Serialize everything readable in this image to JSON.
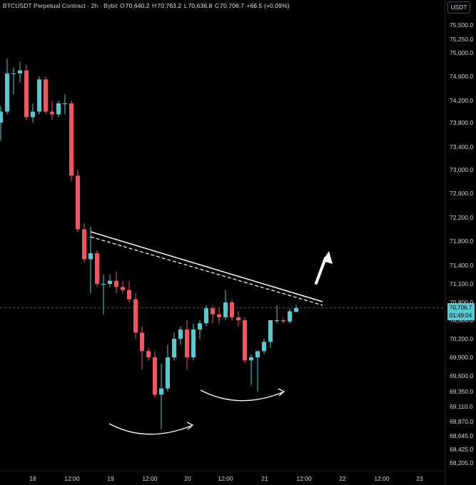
{
  "header": {
    "symbol": "BTCUSDT Perpetual Contract · 2h · Bybit",
    "o_label": "O",
    "o_value": "70,640.2",
    "h_label": "H",
    "h_value": "70,763.2",
    "l_label": "L",
    "l_value": "70,636.8",
    "c_label": "C",
    "c_value": "70,706.7",
    "change": "+66.5 (+0.09%)"
  },
  "currency_button": "USDT",
  "price_badge": {
    "price": "70,706.7",
    "countdown": "01:49:04"
  },
  "colors": {
    "up": "#5ac8d0",
    "down": "#f2555f",
    "background": "#000000",
    "text": "#d1d4dc"
  },
  "chart_data": {
    "type": "candlestick",
    "y_tick_labels": [
      "75,500.0",
      "75,250.0",
      "75,000.0",
      "74,600.0",
      "74,200.0",
      "73,800.0",
      "73,400.0",
      "73,000.0",
      "72,600.0",
      "72,200.0",
      "71,800.0",
      "71,400.0",
      "71,100.0",
      "70,800.0",
      "70,500.0",
      "70,200.0",
      "69,900.0",
      "69,600.0",
      "69,350.0",
      "69,110.0",
      "68,870.0",
      "68,645.0",
      "68,425.0",
      "68,205.0"
    ],
    "x_tick_labels": [
      "18",
      "12:00",
      "19",
      "12:00",
      "20",
      "12:00",
      "21",
      "12:00",
      "22",
      "12:00",
      "23"
    ],
    "last_price": 70706.7,
    "candles": [
      {
        "o": 73800,
        "h": 74100,
        "l": 73500,
        "c": 74000
      },
      {
        "o": 74000,
        "h": 74900,
        "l": 73950,
        "c": 74650
      },
      {
        "o": 74650,
        "h": 74750,
        "l": 74300,
        "c": 74650
      },
      {
        "o": 74650,
        "h": 74850,
        "l": 74500,
        "c": 74700
      },
      {
        "o": 74700,
        "h": 74800,
        "l": 73850,
        "c": 73900
      },
      {
        "o": 73900,
        "h": 74150,
        "l": 73800,
        "c": 74000
      },
      {
        "o": 74000,
        "h": 74600,
        "l": 73950,
        "c": 74550
      },
      {
        "o": 74550,
        "h": 74600,
        "l": 73950,
        "c": 74000
      },
      {
        "o": 74000,
        "h": 74200,
        "l": 73850,
        "c": 73950
      },
      {
        "o": 73950,
        "h": 74200,
        "l": 73900,
        "c": 74150
      },
      {
        "o": 74150,
        "h": 74300,
        "l": 73950,
        "c": 74150
      },
      {
        "o": 74150,
        "h": 74200,
        "l": 72800,
        "c": 72900
      },
      {
        "o": 72900,
        "h": 73000,
        "l": 71950,
        "c": 72000
      },
      {
        "o": 72000,
        "h": 72100,
        "l": 71450,
        "c": 71500
      },
      {
        "o": 71500,
        "h": 72050,
        "l": 70950,
        "c": 71600
      },
      {
        "o": 71600,
        "h": 71650,
        "l": 71050,
        "c": 71100
      },
      {
        "o": 71100,
        "h": 71250,
        "l": 70600,
        "c": 71100
      },
      {
        "o": 71100,
        "h": 71250,
        "l": 71050,
        "c": 71150
      },
      {
        "o": 71150,
        "h": 71300,
        "l": 70950,
        "c": 71050
      },
      {
        "o": 71050,
        "h": 71150,
        "l": 70950,
        "c": 71000
      },
      {
        "o": 71000,
        "h": 71150,
        "l": 70800,
        "c": 70850
      },
      {
        "o": 70850,
        "h": 70950,
        "l": 70200,
        "c": 70300
      },
      {
        "o": 70300,
        "h": 70400,
        "l": 69700,
        "c": 70000
      },
      {
        "o": 70000,
        "h": 70050,
        "l": 69850,
        "c": 69900
      },
      {
        "o": 69900,
        "h": 70000,
        "l": 69250,
        "c": 69300
      },
      {
        "o": 69300,
        "h": 69800,
        "l": 68750,
        "c": 69400
      },
      {
        "o": 69400,
        "h": 70100,
        "l": 69350,
        "c": 69900
      },
      {
        "o": 69900,
        "h": 70300,
        "l": 69850,
        "c": 70200
      },
      {
        "o": 70200,
        "h": 70400,
        "l": 70100,
        "c": 70350
      },
      {
        "o": 70350,
        "h": 70500,
        "l": 69700,
        "c": 69900
      },
      {
        "o": 69900,
        "h": 70450,
        "l": 69850,
        "c": 70350
      },
      {
        "o": 70350,
        "h": 70500,
        "l": 70200,
        "c": 70450
      },
      {
        "o": 70450,
        "h": 70750,
        "l": 70400,
        "c": 70700
      },
      {
        "o": 70700,
        "h": 70750,
        "l": 70450,
        "c": 70600
      },
      {
        "o": 70600,
        "h": 70700,
        "l": 70450,
        "c": 70550
      },
      {
        "o": 70550,
        "h": 71000,
        "l": 70500,
        "c": 70800
      },
      {
        "o": 70800,
        "h": 70850,
        "l": 70500,
        "c": 70550
      },
      {
        "o": 70550,
        "h": 70650,
        "l": 70400,
        "c": 70500
      },
      {
        "o": 70500,
        "h": 70550,
        "l": 69800,
        "c": 69850
      },
      {
        "o": 69850,
        "h": 69950,
        "l": 69450,
        "c": 69900
      },
      {
        "o": 69900,
        "h": 70000,
        "l": 69350,
        "c": 70000
      },
      {
        "o": 70000,
        "h": 70200,
        "l": 69950,
        "c": 70150
      },
      {
        "o": 70150,
        "h": 70500,
        "l": 70050,
        "c": 70500
      },
      {
        "o": 70500,
        "h": 70750,
        "l": 70450,
        "c": 70500
      },
      {
        "o": 70500,
        "h": 70550,
        "l": 70450,
        "c": 70480
      },
      {
        "o": 70480,
        "h": 70700,
        "l": 70450,
        "c": 70650
      },
      {
        "o": 70640.2,
        "h": 70763.2,
        "l": 70636.8,
        "c": 70706.7
      }
    ]
  }
}
